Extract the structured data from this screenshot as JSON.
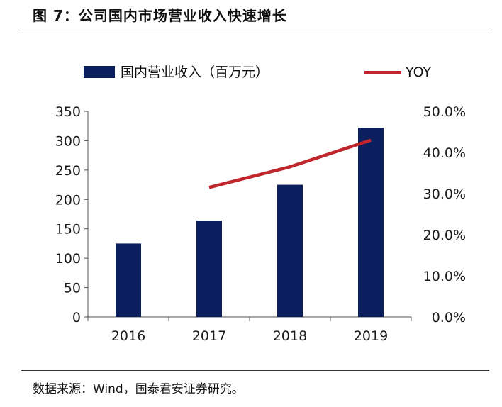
{
  "figure": {
    "title": "图 7：公司国内市场营业收入快速增长",
    "source": "数据来源：Wind，国泰君安证券研究。"
  },
  "chart_data": {
    "type": "bar",
    "categories": [
      "2016",
      "2017",
      "2018",
      "2019"
    ],
    "series": [
      {
        "name": "国内营业收入（百万元）",
        "kind": "bar",
        "axis": "left",
        "values": [
          125,
          164,
          225,
          322
        ],
        "color": "#0b1f5e"
      },
      {
        "name": "YOY",
        "kind": "line",
        "axis": "right",
        "values": [
          null,
          31.5,
          36.5,
          43.0
        ],
        "color": "#c0272d"
      }
    ],
    "y_left": {
      "min": 0,
      "max": 350,
      "ticks": [
        "0",
        "50",
        "100",
        "150",
        "200",
        "250",
        "300",
        "350"
      ]
    },
    "y_right": {
      "min": 0,
      "max": 50,
      "ticks": [
        "0.0%",
        "10.0%",
        "20.0%",
        "30.0%",
        "40.0%",
        "50.0%"
      ]
    },
    "legend": {
      "placement": "top",
      "bar_label": "国内营业收入（百万元）",
      "line_label": "YOY"
    },
    "grid": false
  }
}
